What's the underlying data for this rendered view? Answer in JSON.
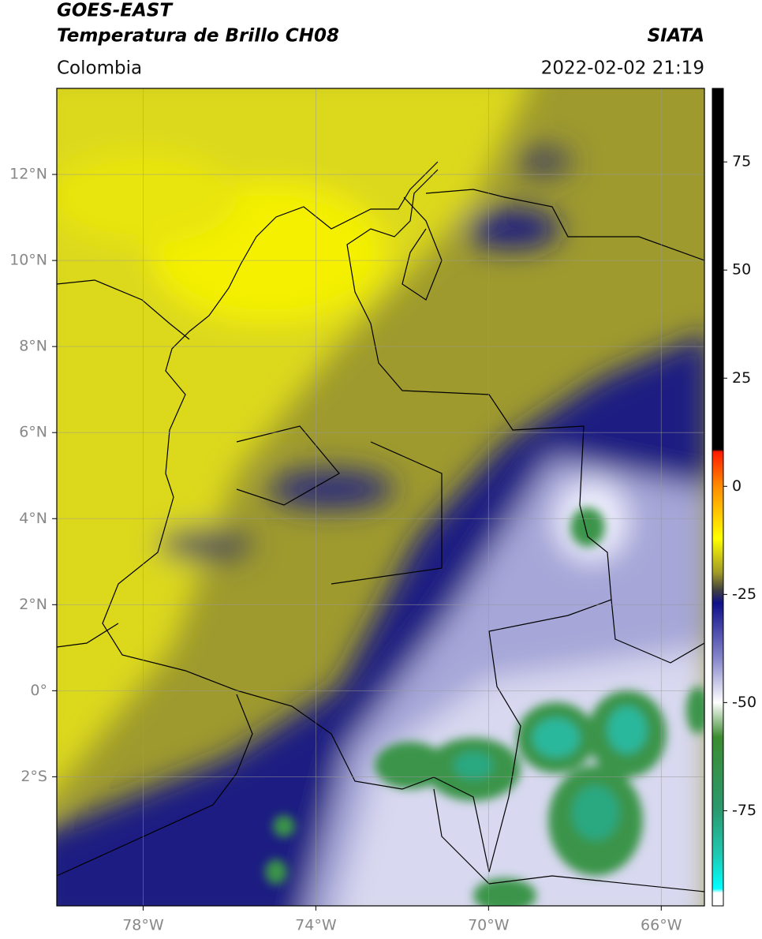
{
  "chart_data": {
    "type": "map",
    "title": "GOES-EAST",
    "subtitle": "Temperatura de Brillo CH08",
    "source": "SIATA",
    "region": "Colombia",
    "datetime": "2022-02-02 21:19",
    "xlim": [
      -80,
      -65
    ],
    "ylim": [
      -5,
      14
    ],
    "xticks": [
      {
        "value": -78,
        "label": "78°W"
      },
      {
        "value": -74,
        "label": "74°W"
      },
      {
        "value": -70,
        "label": "70°W"
      },
      {
        "value": -66,
        "label": "66°W"
      }
    ],
    "yticks": [
      {
        "value": -2,
        "label": "2°S"
      },
      {
        "value": 0,
        "label": "0°"
      },
      {
        "value": 2,
        "label": "2°N"
      },
      {
        "value": 4,
        "label": "4°N"
      },
      {
        "value": 6,
        "label": "6°N"
      },
      {
        "value": 8,
        "label": "8°N"
      },
      {
        "value": 10,
        "label": "10°N"
      },
      {
        "value": 12,
        "label": "12°N"
      }
    ],
    "grid": true,
    "colorbar": {
      "lim": [
        -97,
        92
      ],
      "ticks": [
        75,
        50,
        25,
        0,
        -25,
        -50,
        -75
      ],
      "stops": [
        {
          "value": 92,
          "color": "#000000"
        },
        {
          "value": 8.5,
          "color": "#000000"
        },
        {
          "value": 8,
          "color": "#ff1a00"
        },
        {
          "value": 0,
          "color": "#ff8c00"
        },
        {
          "value": -12,
          "color": "#ffff00"
        },
        {
          "value": -20,
          "color": "#a09a28"
        },
        {
          "value": -24,
          "color": "#404040"
        },
        {
          "value": -27,
          "color": "#10108a"
        },
        {
          "value": -40,
          "color": "#8888cc"
        },
        {
          "value": -50,
          "color": "#ffffff"
        },
        {
          "value": -58,
          "color": "#3c8c30"
        },
        {
          "value": -75,
          "color": "#2a9a70"
        },
        {
          "value": -85,
          "color": "#20c8b0"
        },
        {
          "value": -93,
          "color": "#00ffff"
        },
        {
          "value": -94,
          "color": "#ffffff"
        },
        {
          "value": -97,
          "color": "#ffffff"
        }
      ]
    }
  }
}
